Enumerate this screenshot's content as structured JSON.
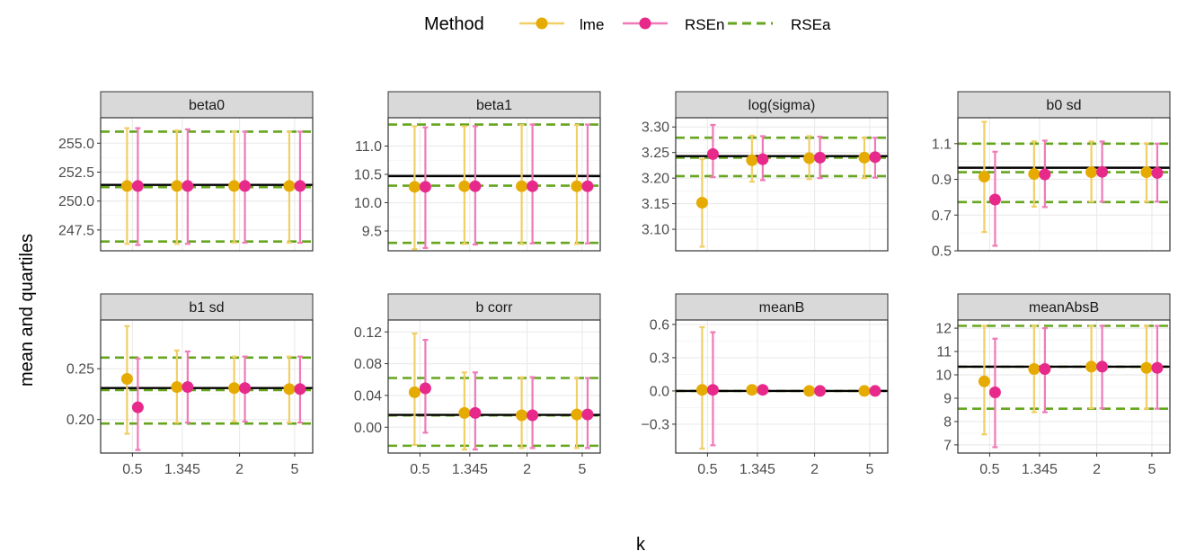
{
  "legend": {
    "title": "Method",
    "items": [
      {
        "label": "lme",
        "kind": "point-line",
        "color": "#E6AB02",
        "bar_color": "#F1CF66"
      },
      {
        "label": "RSEn",
        "kind": "point-line",
        "color": "#E7298A",
        "bar_color": "#EF7AB7"
      },
      {
        "label": "RSEa",
        "kind": "dashed",
        "color": "#66A61E"
      }
    ],
    "position": "top"
  },
  "x_label": "k",
  "y_label": "mean and quartiles",
  "colors": {
    "truth_line": "#000000",
    "panel_strip": "#D9D9D9",
    "grid": "#EBEBEB",
    "border": "#333333"
  },
  "chart_data": {
    "type": "scatter",
    "layout": "facet-grid 2 rows x 4 columns, free y scales",
    "categories": [
      "0.5",
      "1.345",
      "2",
      "5"
    ],
    "grid": true,
    "panels": [
      {
        "title": "beta0",
        "y_ticks": [
          247.5,
          250.0,
          252.5,
          255.0
        ],
        "y_tick_labels": [
          "247.5",
          "250.0",
          "252.5",
          "255.0"
        ],
        "ylim": [
          245.7,
          257.2
        ],
        "truth": 251.4,
        "rsea": [
          246.5,
          251.2,
          256.0
        ],
        "lme": [
          {
            "mean": 251.3,
            "q1": 246.3,
            "q3": 256.3
          },
          {
            "mean": 251.3,
            "q1": 246.3,
            "q3": 256.1
          },
          {
            "mean": 251.3,
            "q1": 246.4,
            "q3": 256.0
          },
          {
            "mean": 251.3,
            "q1": 246.4,
            "q3": 256.0
          }
        ],
        "rsen": [
          {
            "mean": 251.3,
            "q1": 246.2,
            "q3": 256.3
          },
          {
            "mean": 251.3,
            "q1": 246.3,
            "q3": 256.2
          },
          {
            "mean": 251.3,
            "q1": 246.4,
            "q3": 256.0
          },
          {
            "mean": 251.3,
            "q1": 246.4,
            "q3": 256.0
          }
        ]
      },
      {
        "title": "beta1",
        "y_ticks": [
          9.5,
          10.0,
          10.5,
          11.0
        ],
        "y_tick_labels": [
          "9.5",
          "10.0",
          "10.5",
          "11.0"
        ],
        "ylim": [
          9.15,
          11.5
        ],
        "truth": 10.47,
        "rsea": [
          9.29,
          10.3,
          11.38
        ],
        "lme": [
          {
            "mean": 10.28,
            "q1": 9.18,
            "q3": 11.35
          },
          {
            "mean": 10.29,
            "q1": 9.27,
            "q3": 11.35
          },
          {
            "mean": 10.29,
            "q1": 9.27,
            "q3": 11.37
          },
          {
            "mean": 10.29,
            "q1": 9.27,
            "q3": 11.37
          }
        ],
        "rsen": [
          {
            "mean": 10.28,
            "q1": 9.2,
            "q3": 11.33
          },
          {
            "mean": 10.29,
            "q1": 9.26,
            "q3": 11.35
          },
          {
            "mean": 10.29,
            "q1": 9.28,
            "q3": 11.38
          },
          {
            "mean": 10.29,
            "q1": 9.28,
            "q3": 11.38
          }
        ]
      },
      {
        "title": "log(sigma)",
        "y_ticks": [
          3.1,
          3.15,
          3.2,
          3.25,
          3.3
        ],
        "y_tick_labels": [
          "3.10",
          "3.15",
          "3.20",
          "3.25",
          "3.30"
        ],
        "ylim": [
          3.058,
          3.318
        ],
        "truth": 3.243,
        "rsea": [
          3.204,
          3.24,
          3.279
        ],
        "lme": [
          {
            "mean": 3.152,
            "q1": 3.066,
            "q3": 3.237
          },
          {
            "mean": 3.235,
            "q1": 3.193,
            "q3": 3.283
          },
          {
            "mean": 3.239,
            "q1": 3.198,
            "q3": 3.282
          },
          {
            "mean": 3.24,
            "q1": 3.2,
            "q3": 3.279
          }
        ],
        "rsen": [
          {
            "mean": 3.247,
            "q1": 3.202,
            "q3": 3.304
          },
          {
            "mean": 3.237,
            "q1": 3.196,
            "q3": 3.282
          },
          {
            "mean": 3.24,
            "q1": 3.2,
            "q3": 3.281
          },
          {
            "mean": 3.241,
            "q1": 3.201,
            "q3": 3.279
          }
        ]
      },
      {
        "title": "b0 sd",
        "y_ticks": [
          0.5,
          0.7,
          0.9,
          1.1
        ],
        "y_tick_labels": [
          "0.5",
          "0.7",
          "0.9",
          "1.1"
        ],
        "ylim": [
          0.5,
          1.245
        ],
        "truth": 0.965,
        "rsea": [
          0.773,
          0.94,
          1.1
        ],
        "lme": [
          {
            "mean": 0.915,
            "q1": 0.605,
            "q3": 1.222
          },
          {
            "mean": 0.93,
            "q1": 0.747,
            "q3": 1.113
          },
          {
            "mean": 0.94,
            "q1": 0.775,
            "q3": 1.112
          },
          {
            "mean": 0.94,
            "q1": 0.775,
            "q3": 1.102
          }
        ],
        "rsen": [
          {
            "mean": 0.787,
            "q1": 0.528,
            "q3": 1.055
          },
          {
            "mean": 0.928,
            "q1": 0.745,
            "q3": 1.117
          },
          {
            "mean": 0.942,
            "q1": 0.775,
            "q3": 1.112
          },
          {
            "mean": 0.936,
            "q1": 0.775,
            "q3": 1.1
          }
        ]
      },
      {
        "title": "b1 sd",
        "y_ticks": [
          0.2,
          0.25
        ],
        "y_tick_labels": [
          "0.20",
          "0.25"
        ],
        "ylim": [
          0.167,
          0.298
        ],
        "truth": 0.231,
        "rsea": [
          0.196,
          0.229,
          0.261
        ],
        "lme": [
          {
            "mean": 0.24,
            "q1": 0.186,
            "q3": 0.292
          },
          {
            "mean": 0.232,
            "q1": 0.197,
            "q3": 0.268
          },
          {
            "mean": 0.231,
            "q1": 0.198,
            "q3": 0.262
          },
          {
            "mean": 0.23,
            "q1": 0.197,
            "q3": 0.262
          }
        ],
        "rsen": [
          {
            "mean": 0.212,
            "q1": 0.17,
            "q3": 0.26
          },
          {
            "mean": 0.232,
            "q1": 0.197,
            "q3": 0.267
          },
          {
            "mean": 0.231,
            "q1": 0.198,
            "q3": 0.262
          },
          {
            "mean": 0.23,
            "q1": 0.197,
            "q3": 0.262
          }
        ]
      },
      {
        "title": "b corr",
        "y_ticks": [
          0.0,
          0.04,
          0.08,
          0.12
        ],
        "y_tick_labels": [
          "0.00",
          "0.04",
          "0.08",
          "0.12"
        ],
        "ylim": [
          -0.0325,
          0.135
        ],
        "truth": 0.0155,
        "rsea": [
          -0.0233,
          0.0148,
          0.062
        ],
        "lme": [
          {
            "mean": 0.044,
            "q1": -0.0222,
            "q3": 0.118
          },
          {
            "mean": 0.018,
            "q1": -0.0281,
            "q3": 0.069
          },
          {
            "mean": 0.015,
            "q1": -0.0262,
            "q3": 0.063
          },
          {
            "mean": 0.016,
            "q1": -0.0262,
            "q3": 0.062
          }
        ],
        "rsen": [
          {
            "mean": 0.049,
            "q1": -0.0069,
            "q3": 0.11
          },
          {
            "mean": 0.018,
            "q1": -0.0281,
            "q3": 0.069
          },
          {
            "mean": 0.015,
            "q1": -0.0262,
            "q3": 0.063
          },
          {
            "mean": 0.016,
            "q1": -0.0262,
            "q3": 0.062
          }
        ]
      },
      {
        "title": "meanB",
        "y_ticks": [
          -0.3,
          0.0,
          0.3,
          0.6
        ],
        "y_tick_labels": [
          "−0.3",
          "0.0",
          "0.3",
          "0.6"
        ],
        "ylim": [
          -0.56,
          0.64
        ],
        "truth": 0.0,
        "rsea": [
          0.0
        ],
        "lme": [
          {
            "mean": 0.01,
            "q1": -0.52,
            "q3": 0.575
          },
          {
            "mean": 0.01,
            "q1": 0.0,
            "q3": 0.01
          },
          {
            "mean": 0.0,
            "q1": 0.0,
            "q3": 0.0
          },
          {
            "mean": 0.0,
            "q1": 0.0,
            "q3": 0.0
          }
        ],
        "rsen": [
          {
            "mean": 0.01,
            "q1": -0.49,
            "q3": 0.53
          },
          {
            "mean": 0.01,
            "q1": 0.0,
            "q3": 0.01
          },
          {
            "mean": 0.0,
            "q1": 0.0,
            "q3": 0.0
          },
          {
            "mean": 0.0,
            "q1": 0.0,
            "q3": 0.0
          }
        ]
      },
      {
        "title": "meanAbsB",
        "y_ticks": [
          7,
          8,
          9,
          10,
          11,
          12
        ],
        "y_tick_labels": [
          "7",
          "8",
          "9",
          "10",
          "11",
          "12"
        ],
        "ylim": [
          6.65,
          12.35
        ],
        "truth": 10.35,
        "rsea": [
          8.55,
          10.35,
          12.1
        ],
        "lme": [
          {
            "mean": 9.72,
            "q1": 7.45,
            "q3": 12.1
          },
          {
            "mean": 10.25,
            "q1": 8.4,
            "q3": 12.1
          },
          {
            "mean": 10.35,
            "q1": 8.57,
            "q3": 12.1
          },
          {
            "mean": 10.3,
            "q1": 8.55,
            "q3": 12.1
          }
        ],
        "rsen": [
          {
            "mean": 9.25,
            "q1": 6.9,
            "q3": 11.55
          },
          {
            "mean": 10.25,
            "q1": 8.4,
            "q3": 12.0
          },
          {
            "mean": 10.35,
            "q1": 8.57,
            "q3": 12.1
          },
          {
            "mean": 10.3,
            "q1": 8.55,
            "q3": 12.1
          }
        ]
      }
    ]
  }
}
